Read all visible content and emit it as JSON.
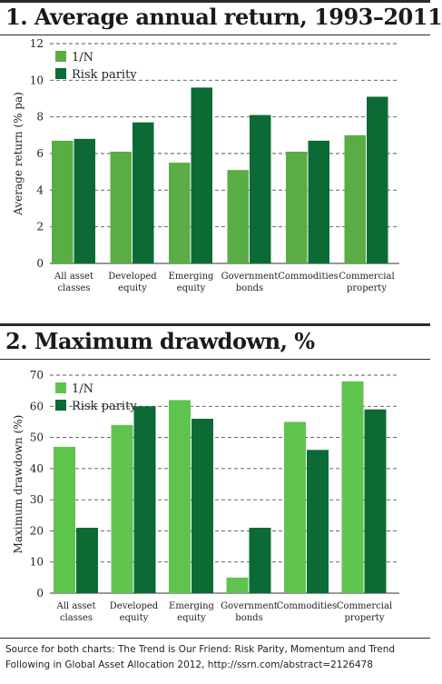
{
  "chart_data": [
    {
      "type": "bar",
      "title": "1. Average annual return, 1993–2011",
      "ylabel": "Average return (% pa)",
      "xlabel": "",
      "ylim": [
        0,
        12
      ],
      "yticks": [
        0,
        2,
        4,
        6,
        8,
        10,
        12
      ],
      "grid": true,
      "legend_position": "top-left",
      "categories": [
        [
          "All asset",
          "classes"
        ],
        [
          "Developed",
          "equity"
        ],
        [
          "Emerging",
          "equity"
        ],
        [
          "Government",
          "bonds"
        ],
        [
          "Commodities"
        ],
        [
          "Commercial",
          "property"
        ]
      ],
      "series": [
        {
          "name": "1/N",
          "color": "#5aad45",
          "values": [
            6.7,
            6.1,
            5.5,
            5.1,
            6.1,
            7.0
          ]
        },
        {
          "name": "Risk parity",
          "color": "#0c6b35",
          "values": [
            6.8,
            7.7,
            9.6,
            8.1,
            6.7,
            9.1
          ]
        }
      ]
    },
    {
      "type": "bar",
      "title": "2. Maximum drawdown, %",
      "ylabel": "Maximum drawdown (%)",
      "xlabel": "",
      "ylim": [
        0,
        70
      ],
      "yticks": [
        0,
        10,
        20,
        30,
        40,
        50,
        60,
        70
      ],
      "grid": true,
      "legend_position": "top-left",
      "categories": [
        [
          "All asset",
          "classes"
        ],
        [
          "Developed",
          "equity"
        ],
        [
          "Emerging",
          "equity"
        ],
        [
          "Government",
          "bonds"
        ],
        [
          "Commodities"
        ],
        [
          "Commercial",
          "property"
        ]
      ],
      "series": [
        {
          "name": "1/N",
          "color": "#5fc44e",
          "values": [
            47,
            54,
            62,
            5,
            55,
            68
          ]
        },
        {
          "name": "Risk parity",
          "color": "#0c6b35",
          "values": [
            21,
            60,
            56,
            21,
            46,
            59
          ]
        }
      ]
    }
  ],
  "source": "Source for both charts: The Trend is Our Friend: Risk Parity, Momentum and Trend Following in Global Asset Allocation 2012,  http://ssrn.com/abstract=2126478"
}
